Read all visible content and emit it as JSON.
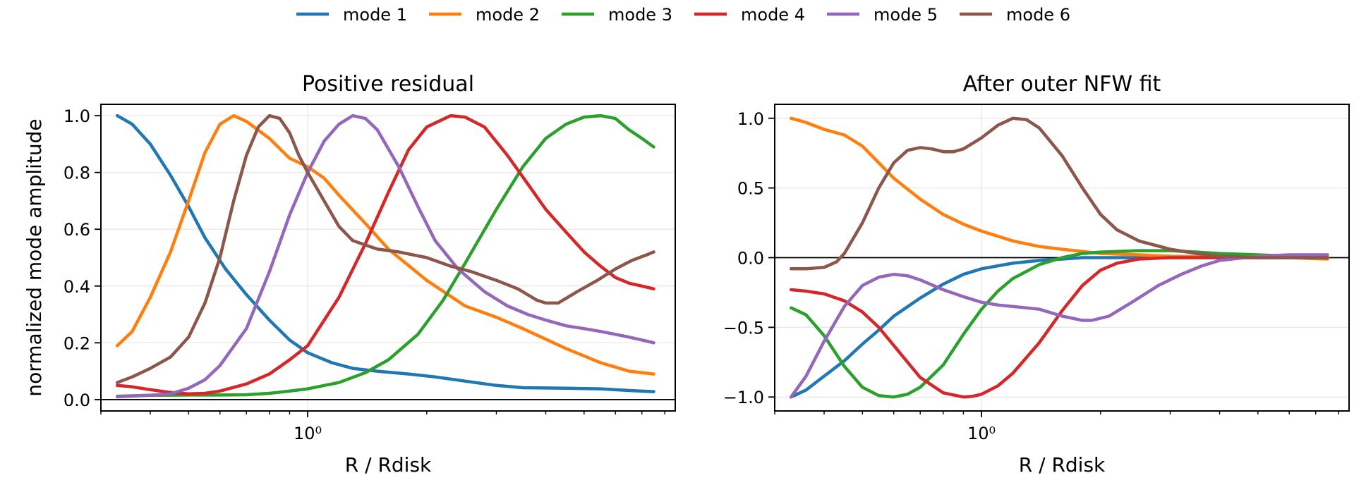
{
  "figure": {
    "legend": {
      "placement": "top-center",
      "entries": [
        {
          "label": "mode 1",
          "color": "#1f77b4"
        },
        {
          "label": "mode 2",
          "color": "#ff7f0e"
        },
        {
          "label": "mode 3",
          "color": "#2ca02c"
        },
        {
          "label": "mode 4",
          "color": "#d62728"
        },
        {
          "label": "mode 5",
          "color": "#9467bd"
        },
        {
          "label": "mode 6",
          "color": "#8c564b"
        }
      ]
    }
  },
  "chart_data": [
    {
      "type": "line",
      "title": "Positive residual",
      "xlabel": "R / Rdisk",
      "ylabel": "normalized mode amplitude",
      "xscale": "log",
      "xlim": [
        0.3,
        8.5
      ],
      "ylim": [
        -0.04,
        1.04
      ],
      "x_tick_label": "10⁰",
      "y_ticks": [
        "0.0",
        "0.2",
        "0.4",
        "0.6",
        "0.8",
        "1.0"
      ],
      "grid": true,
      "zero_line": true,
      "series": [
        {
          "name": "mode 1",
          "color": "#1f77b4",
          "x": [
            0.33,
            0.36,
            0.4,
            0.45,
            0.5,
            0.55,
            0.62,
            0.7,
            0.8,
            0.9,
            1.0,
            1.15,
            1.3,
            1.5,
            1.8,
            2.1,
            2.5,
            3.0,
            3.5,
            4.5,
            5.5,
            6.5,
            7.5
          ],
          "y": [
            1.0,
            0.97,
            0.9,
            0.79,
            0.68,
            0.57,
            0.46,
            0.37,
            0.28,
            0.21,
            0.165,
            0.13,
            0.11,
            0.1,
            0.09,
            0.08,
            0.065,
            0.05,
            0.042,
            0.04,
            0.038,
            0.032,
            0.028
          ]
        },
        {
          "name": "mode 2",
          "color": "#ff7f0e",
          "x": [
            0.33,
            0.36,
            0.4,
            0.45,
            0.5,
            0.55,
            0.6,
            0.65,
            0.7,
            0.8,
            0.9,
            1.0,
            1.1,
            1.2,
            1.4,
            1.6,
            2.0,
            2.5,
            3.0,
            3.5,
            4.5,
            5.5,
            6.5,
            7.5
          ],
          "y": [
            0.19,
            0.24,
            0.36,
            0.52,
            0.7,
            0.87,
            0.97,
            1.0,
            0.98,
            0.92,
            0.85,
            0.82,
            0.78,
            0.72,
            0.62,
            0.53,
            0.42,
            0.33,
            0.29,
            0.25,
            0.18,
            0.13,
            0.1,
            0.09
          ]
        },
        {
          "name": "mode 3",
          "color": "#2ca02c",
          "x": [
            0.33,
            0.4,
            0.5,
            0.6,
            0.7,
            0.8,
            0.9,
            1.0,
            1.2,
            1.4,
            1.6,
            1.9,
            2.2,
            2.5,
            3.0,
            3.5,
            4.0,
            4.5,
            5.0,
            5.5,
            6.0,
            6.5,
            7.0,
            7.5
          ],
          "y": [
            0.012,
            0.015,
            0.016,
            0.016,
            0.017,
            0.022,
            0.03,
            0.038,
            0.06,
            0.095,
            0.14,
            0.23,
            0.35,
            0.48,
            0.67,
            0.82,
            0.92,
            0.97,
            0.995,
            1.0,
            0.99,
            0.95,
            0.92,
            0.89
          ]
        },
        {
          "name": "mode 4",
          "color": "#d62728",
          "x": [
            0.33,
            0.36,
            0.4,
            0.45,
            0.5,
            0.55,
            0.6,
            0.7,
            0.8,
            0.9,
            1.0,
            1.2,
            1.4,
            1.6,
            1.8,
            2.0,
            2.3,
            2.5,
            2.8,
            3.2,
            3.6,
            4.0,
            4.5,
            5.0,
            5.5,
            6.0,
            6.5,
            7.0,
            7.5
          ],
          "y": [
            0.05,
            0.045,
            0.035,
            0.025,
            0.02,
            0.022,
            0.03,
            0.055,
            0.09,
            0.14,
            0.19,
            0.36,
            0.55,
            0.73,
            0.88,
            0.96,
            1.0,
            0.995,
            0.96,
            0.86,
            0.76,
            0.67,
            0.59,
            0.52,
            0.47,
            0.43,
            0.41,
            0.4,
            0.39
          ]
        },
        {
          "name": "mode 5",
          "color": "#9467bd",
          "x": [
            0.33,
            0.4,
            0.45,
            0.5,
            0.55,
            0.6,
            0.7,
            0.8,
            0.9,
            1.0,
            1.1,
            1.2,
            1.3,
            1.4,
            1.5,
            1.7,
            1.9,
            2.1,
            2.4,
            2.8,
            3.2,
            3.6,
            4.0,
            4.5,
            5.0,
            5.5,
            6.0,
            6.5,
            7.0,
            7.5
          ],
          "y": [
            0.01,
            0.015,
            0.02,
            0.04,
            0.07,
            0.12,
            0.25,
            0.45,
            0.65,
            0.8,
            0.91,
            0.97,
            1.0,
            0.99,
            0.95,
            0.82,
            0.68,
            0.56,
            0.46,
            0.38,
            0.33,
            0.3,
            0.28,
            0.26,
            0.25,
            0.24,
            0.23,
            0.22,
            0.21,
            0.2
          ]
        },
        {
          "name": "mode 6",
          "color": "#8c564b",
          "x": [
            0.33,
            0.36,
            0.4,
            0.45,
            0.5,
            0.55,
            0.6,
            0.65,
            0.7,
            0.75,
            0.8,
            0.85,
            0.9,
            0.95,
            1.0,
            1.1,
            1.2,
            1.3,
            1.5,
            1.7,
            2.0,
            2.3,
            2.6,
            3.0,
            3.4,
            3.8,
            4.0,
            4.3,
            4.8,
            5.4,
            6.0,
            6.6,
            7.2,
            7.5
          ],
          "y": [
            0.06,
            0.08,
            0.11,
            0.15,
            0.22,
            0.34,
            0.5,
            0.7,
            0.86,
            0.96,
            1.0,
            0.99,
            0.94,
            0.86,
            0.8,
            0.7,
            0.61,
            0.56,
            0.53,
            0.52,
            0.5,
            0.47,
            0.45,
            0.42,
            0.39,
            0.35,
            0.34,
            0.34,
            0.38,
            0.42,
            0.46,
            0.49,
            0.51,
            0.52
          ]
        }
      ]
    },
    {
      "type": "line",
      "title": "After outer NFW fit",
      "xlabel": "R / Rdisk",
      "ylabel": "",
      "xscale": "log",
      "xlim": [
        0.3,
        8.5
      ],
      "ylim": [
        -1.1,
        1.1
      ],
      "x_tick_label": "10⁰",
      "y_ticks": [
        "1.0",
        "0.5",
        "0.0",
        "−0.5",
        "−1.0"
      ],
      "grid": true,
      "zero_line": true,
      "series": [
        {
          "name": "mode 1",
          "color": "#1f77b4",
          "x": [
            0.33,
            0.36,
            0.4,
            0.45,
            0.5,
            0.55,
            0.6,
            0.7,
            0.8,
            0.9,
            1.0,
            1.2,
            1.4,
            1.6,
            1.8,
            2.0,
            2.5,
            3.0,
            4.0,
            5.0,
            6.0,
            7.5
          ],
          "y": [
            -1.0,
            -0.95,
            -0.85,
            -0.74,
            -0.62,
            -0.52,
            -0.42,
            -0.29,
            -0.19,
            -0.12,
            -0.08,
            -0.04,
            -0.02,
            -0.01,
            0.0,
            0.0,
            0.0,
            0.0,
            0.0,
            0.0,
            0.0,
            0.0
          ]
        },
        {
          "name": "mode 2",
          "color": "#ff7f0e",
          "x": [
            0.33,
            0.36,
            0.4,
            0.45,
            0.5,
            0.55,
            0.6,
            0.7,
            0.8,
            0.9,
            1.0,
            1.2,
            1.4,
            1.6,
            2.0,
            2.5,
            3.0,
            4.0,
            5.0,
            6.0,
            7.5
          ],
          "y": [
            1.0,
            0.97,
            0.92,
            0.88,
            0.8,
            0.68,
            0.57,
            0.42,
            0.31,
            0.24,
            0.19,
            0.12,
            0.08,
            0.06,
            0.03,
            0.02,
            0.01,
            0.005,
            0.0,
            0.0,
            -0.01
          ]
        },
        {
          "name": "mode 3",
          "color": "#2ca02c",
          "x": [
            0.33,
            0.36,
            0.4,
            0.45,
            0.5,
            0.55,
            0.6,
            0.65,
            0.7,
            0.8,
            0.9,
            1.0,
            1.1,
            1.2,
            1.4,
            1.6,
            1.8,
            2.0,
            2.5,
            3.0,
            3.5,
            4.0,
            5.0,
            6.0,
            7.5
          ],
          "y": [
            -0.36,
            -0.41,
            -0.56,
            -0.78,
            -0.93,
            -0.99,
            -1.0,
            -0.98,
            -0.93,
            -0.77,
            -0.55,
            -0.37,
            -0.24,
            -0.15,
            -0.05,
            0.0,
            0.03,
            0.04,
            0.05,
            0.05,
            0.04,
            0.03,
            0.02,
            0.01,
            0.0
          ]
        },
        {
          "name": "mode 4",
          "color": "#d62728",
          "x": [
            0.33,
            0.36,
            0.4,
            0.45,
            0.5,
            0.55,
            0.6,
            0.7,
            0.8,
            0.9,
            0.95,
            1.0,
            1.1,
            1.2,
            1.4,
            1.6,
            1.8,
            2.0,
            2.2,
            2.5,
            3.0,
            3.5,
            4.0,
            5.0,
            6.0,
            7.5
          ],
          "y": [
            -0.23,
            -0.24,
            -0.26,
            -0.31,
            -0.39,
            -0.5,
            -0.63,
            -0.86,
            -0.97,
            -1.0,
            -0.995,
            -0.98,
            -0.92,
            -0.83,
            -0.61,
            -0.38,
            -0.2,
            -0.09,
            -0.04,
            -0.01,
            0.0,
            0.0,
            0.0,
            0.0,
            0.0,
            0.0
          ]
        },
        {
          "name": "mode 5",
          "color": "#9467bd",
          "x": [
            0.33,
            0.36,
            0.4,
            0.45,
            0.5,
            0.55,
            0.6,
            0.65,
            0.7,
            0.8,
            0.9,
            1.0,
            1.1,
            1.2,
            1.4,
            1.6,
            1.8,
            1.9,
            2.1,
            2.4,
            2.8,
            3.2,
            3.6,
            4.0,
            5.0,
            6.0,
            7.5
          ],
          "y": [
            -1.0,
            -0.85,
            -0.6,
            -0.35,
            -0.2,
            -0.14,
            -0.12,
            -0.13,
            -0.16,
            -0.23,
            -0.28,
            -0.32,
            -0.34,
            -0.35,
            -0.37,
            -0.42,
            -0.45,
            -0.45,
            -0.42,
            -0.32,
            -0.2,
            -0.12,
            -0.06,
            -0.02,
            0.01,
            0.02,
            0.02
          ]
        },
        {
          "name": "mode 6",
          "color": "#8c564b",
          "x": [
            0.33,
            0.36,
            0.4,
            0.43,
            0.45,
            0.5,
            0.55,
            0.6,
            0.65,
            0.7,
            0.75,
            0.8,
            0.85,
            0.9,
            1.0,
            1.1,
            1.2,
            1.3,
            1.4,
            1.6,
            1.8,
            2.0,
            2.2,
            2.5,
            3.0,
            3.5,
            4.0,
            5.0,
            6.0,
            7.5
          ],
          "y": [
            -0.08,
            -0.08,
            -0.07,
            -0.03,
            0.03,
            0.25,
            0.5,
            0.68,
            0.77,
            0.79,
            0.78,
            0.76,
            0.76,
            0.78,
            0.86,
            0.95,
            1.0,
            0.99,
            0.93,
            0.73,
            0.5,
            0.31,
            0.2,
            0.12,
            0.06,
            0.03,
            0.01,
            0.0,
            0.0,
            0.0
          ]
        }
      ]
    }
  ]
}
